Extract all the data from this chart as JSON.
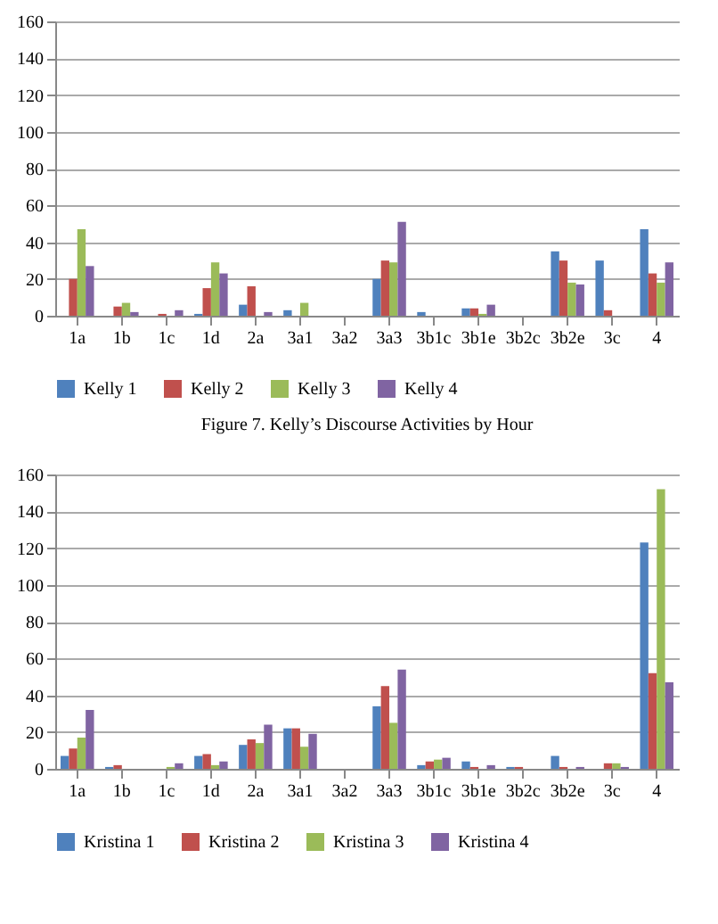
{
  "chart_data": [
    {
      "type": "bar",
      "annotations": [
        "Figure 7.    Kelly’s Discourse Activities by Hour"
      ],
      "categories": [
        "1a",
        "1b",
        "1c",
        "1d",
        "2a",
        "3a1",
        "3a2",
        "3a3",
        "3b1c",
        "3b1e",
        "3b2c",
        "3b2e",
        "3c",
        "4"
      ],
      "series": [
        {
          "name": "Kelly 1",
          "color": "#4f81bd",
          "values": [
            0,
            0,
            0,
            1,
            6,
            3,
            0,
            20,
            2,
            4,
            0,
            35,
            30,
            47
          ]
        },
        {
          "name": "Kelly 2",
          "color": "#c0504d",
          "values": [
            20,
            5,
            1,
            15,
            16,
            0,
            0,
            30,
            0,
            4,
            0,
            30,
            3,
            23
          ]
        },
        {
          "name": "Kelly 3",
          "color": "#9bbb59",
          "values": [
            47,
            7,
            0,
            29,
            0,
            7,
            0,
            29,
            0,
            1,
            0,
            18,
            0,
            18
          ]
        },
        {
          "name": "Kelly 4",
          "color": "#8064a2",
          "values": [
            27,
            2,
            3,
            23,
            2,
            0,
            0,
            51,
            0,
            6,
            0,
            17,
            0,
            29
          ]
        }
      ],
      "ylim": [
        0,
        160
      ],
      "yticks": [
        0,
        20,
        40,
        60,
        80,
        100,
        120,
        140,
        160
      ],
      "grid": "y",
      "legend": "bottom"
    },
    {
      "type": "bar",
      "categories": [
        "1a",
        "1b",
        "1c",
        "1d",
        "2a",
        "3a1",
        "3a2",
        "3a3",
        "3b1c",
        "3b1e",
        "3b2c",
        "3b2e",
        "3c",
        "4"
      ],
      "series": [
        {
          "name": "Kristina 1",
          "color": "#4f81bd",
          "values": [
            7,
            1,
            0,
            7,
            13,
            22,
            0,
            34,
            2,
            4,
            1,
            7,
            0,
            123
          ]
        },
        {
          "name": "Kristina 2",
          "color": "#c0504d",
          "values": [
            11,
            2,
            0,
            8,
            16,
            22,
            0,
            45,
            4,
            1,
            1,
            1,
            3,
            52
          ]
        },
        {
          "name": "Kristina 3",
          "color": "#9bbb59",
          "values": [
            17,
            0,
            1,
            2,
            14,
            12,
            0,
            25,
            5,
            0,
            0,
            0,
            3,
            152
          ]
        },
        {
          "name": "Kristina 4",
          "color": "#8064a2",
          "values": [
            32,
            0,
            3,
            4,
            24,
            19,
            0,
            54,
            6,
            2,
            0,
            1,
            1,
            47
          ]
        }
      ],
      "ylim": [
        0,
        160
      ],
      "yticks": [
        0,
        20,
        40,
        60,
        80,
        100,
        120,
        140,
        160
      ],
      "grid": "y",
      "legend": "bottom"
    }
  ]
}
